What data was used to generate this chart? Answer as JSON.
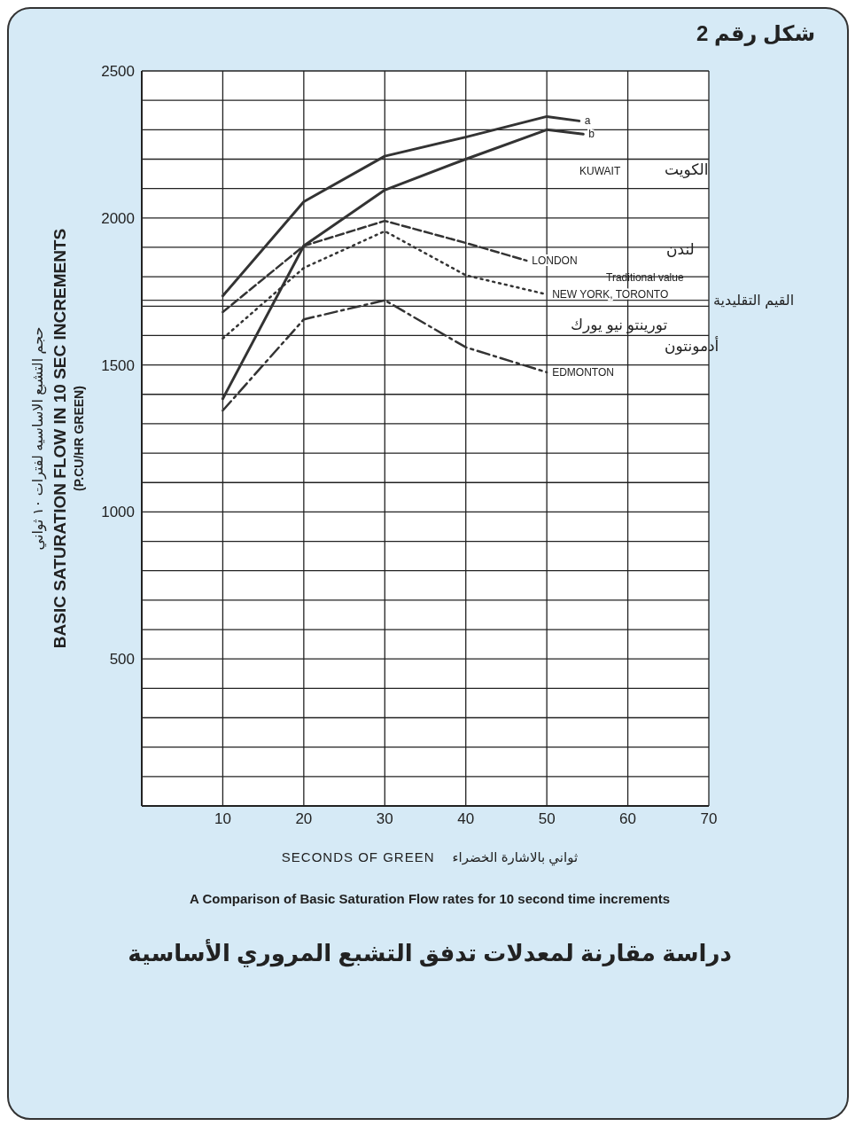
{
  "chart_data": {
    "type": "line",
    "title": "شكل رقم 2",
    "xlabel": "SECONDS OF GREEN",
    "ylabel": "BASIC SATURATION FLOW IN 10 SEC INCREMENTS (P.CU/HR GREEN)",
    "xlim": [
      0,
      70
    ],
    "xticks": [
      10,
      20,
      30,
      40,
      50,
      60,
      70
    ],
    "ylim": [
      0,
      2500
    ],
    "yticks": [
      {
        "value": 0,
        "label": null
      },
      {
        "value": 100,
        "label": null
      },
      {
        "value": 200,
        "label": null
      },
      {
        "value": 300,
        "label": null
      },
      {
        "value": 400,
        "label": null
      },
      500,
      {
        "value": 600,
        "label": null
      },
      {
        "value": 700,
        "label": null
      },
      {
        "value": 800,
        "label": null
      },
      {
        "value": 900,
        "label": null
      },
      1000,
      {
        "value": 1100,
        "label": null
      },
      {
        "value": 1200,
        "label": null
      },
      {
        "value": 1300,
        "label": null
      },
      {
        "value": 1400,
        "label": null
      },
      1500,
      {
        "value": 1600,
        "label": null
      },
      {
        "value": 1700,
        "label": null
      },
      {
        "value": 1800,
        "label": null
      },
      {
        "value": 1900,
        "label": null
      },
      2000,
      {
        "value": 2100,
        "label": null
      },
      {
        "value": 2200,
        "label": null
      },
      {
        "value": 2300,
        "label": null
      },
      {
        "value": 2400,
        "label": null
      },
      2500
    ],
    "grid": true,
    "legend": false,
    "marker": "none",
    "series": [
      {
        "name": "a",
        "color": "#333333",
        "line_style": "solid",
        "x": [
          10,
          20,
          30,
          40,
          50,
          54
        ],
        "values": [
          1735,
          2055,
          2210,
          2275,
          2345,
          2330
        ]
      },
      {
        "name": "b",
        "color": "#333333",
        "line_style": "solid",
        "x": [
          10,
          20,
          30,
          40,
          50,
          54.5
        ],
        "values": [
          1385,
          1905,
          2095,
          2200,
          2300,
          2285
        ]
      },
      {
        "name": "LONDON",
        "color": "#333333",
        "line_style": "dashed",
        "x": [
          10,
          20,
          30,
          40,
          47.5
        ],
        "values": [
          1680,
          1905,
          1990,
          1915,
          1855
        ]
      },
      {
        "name": "NEW YORK, TORONTO",
        "color": "#333333",
        "line_style": "dotted",
        "x": [
          10,
          20,
          30,
          40,
          50
        ],
        "values": [
          1590,
          1830,
          1955,
          1805,
          1740
        ]
      },
      {
        "name": "EDMONTON",
        "color": "#333333",
        "line_style": "dashdot",
        "x": [
          10,
          20,
          30,
          40,
          50
        ],
        "values": [
          1345,
          1655,
          1720,
          1560,
          1475
        ]
      }
    ],
    "ref_lines": [
      {
        "axis": "y",
        "value": 1720,
        "label": "القيم التقليدية",
        "color": "#333333"
      }
    ],
    "annotations": [
      "حجم التشبع الاساسيه لفترات ١٠ ثواني",
      "ثواني بالاشارة الخضراء",
      "A Comparison of Basic Saturation Flow rates for 10 second time increments",
      "دراسة مقارنة لمعدلات تدفق التشبع المروري الأساسية",
      "KUWAIT",
      "الكويت",
      "لندن",
      "Traditional value",
      "تورينتو  نيو يورك",
      "أدمونتون"
    ]
  }
}
